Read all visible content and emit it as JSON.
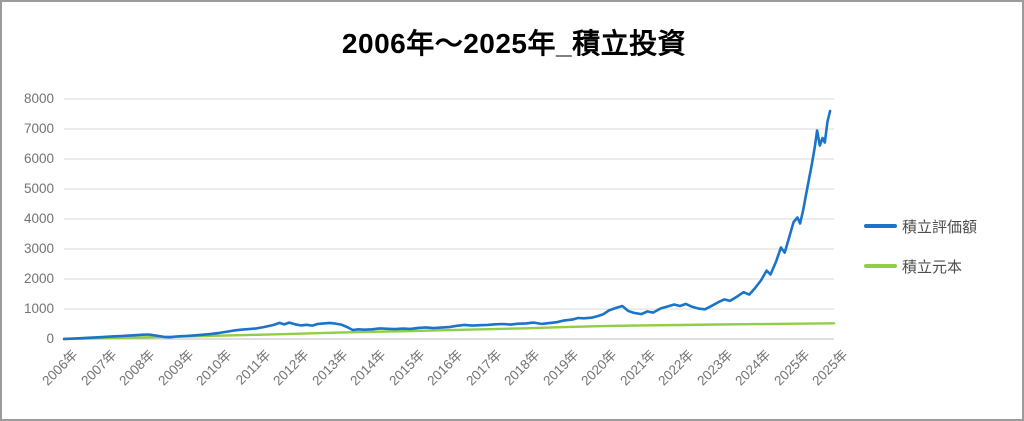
{
  "frame": {
    "border_color": "#9b9b9b",
    "background": "#ffffff"
  },
  "chart_data": {
    "type": "line",
    "title": "2006年～2025年_積立投資",
    "xlabel": "",
    "ylabel": "",
    "ylim": [
      0,
      8000
    ],
    "y_ticks": [
      0,
      1000,
      2000,
      3000,
      4000,
      5000,
      6000,
      7000,
      8000
    ],
    "x_tick_labels": [
      "2006年",
      "2007年",
      "2008年",
      "2009年",
      "2010年",
      "2011年",
      "2012年",
      "2013年",
      "2014年",
      "2015年",
      "2016年",
      "2017年",
      "2018年",
      "2019年",
      "2020年",
      "2021年",
      "2022年",
      "2023年",
      "2024年",
      "2025年",
      "2025年"
    ],
    "grid": "horizontal",
    "grid_color": "#d9d9d9",
    "axis_color": "#bfbfbf",
    "tick_label_color": "#737373",
    "legend_position": "right",
    "x_unit_note": "x = years after 2006 (tick index)",
    "series": [
      {
        "name": "積立評価額",
        "color": "#1b74c9",
        "line_width": 2.6,
        "points": [
          [
            0,
            5
          ],
          [
            0.25,
            15
          ],
          [
            0.5,
            30
          ],
          [
            0.75,
            45
          ],
          [
            1,
            65
          ],
          [
            1.25,
            85
          ],
          [
            1.5,
            100
          ],
          [
            1.75,
            120
          ],
          [
            2,
            140
          ],
          [
            2.2,
            150
          ],
          [
            2.4,
            115
          ],
          [
            2.6,
            70
          ],
          [
            2.75,
            60
          ],
          [
            2.9,
            80
          ],
          [
            3,
            90
          ],
          [
            3.2,
            105
          ],
          [
            3.5,
            130
          ],
          [
            3.8,
            165
          ],
          [
            4,
            195
          ],
          [
            4.2,
            235
          ],
          [
            4.4,
            280
          ],
          [
            4.6,
            310
          ],
          [
            4.8,
            330
          ],
          [
            5,
            355
          ],
          [
            5.2,
            400
          ],
          [
            5.45,
            470
          ],
          [
            5.6,
            535
          ],
          [
            5.72,
            485
          ],
          [
            5.85,
            545
          ],
          [
            6,
            490
          ],
          [
            6.15,
            455
          ],
          [
            6.3,
            475
          ],
          [
            6.45,
            445
          ],
          [
            6.6,
            505
          ],
          [
            6.75,
            520
          ],
          [
            6.9,
            535
          ],
          [
            7.05,
            515
          ],
          [
            7.2,
            480
          ],
          [
            7.35,
            400
          ],
          [
            7.5,
            300
          ],
          [
            7.65,
            325
          ],
          [
            7.8,
            310
          ],
          [
            8,
            325
          ],
          [
            8.2,
            355
          ],
          [
            8.4,
            340
          ],
          [
            8.6,
            330
          ],
          [
            8.8,
            345
          ],
          [
            9,
            335
          ],
          [
            9.2,
            370
          ],
          [
            9.4,
            385
          ],
          [
            9.6,
            365
          ],
          [
            9.8,
            380
          ],
          [
            10,
            395
          ],
          [
            10.2,
            440
          ],
          [
            10.4,
            470
          ],
          [
            10.6,
            445
          ],
          [
            10.8,
            460
          ],
          [
            11,
            470
          ],
          [
            11.2,
            490
          ],
          [
            11.4,
            500
          ],
          [
            11.6,
            480
          ],
          [
            11.8,
            510
          ],
          [
            12,
            520
          ],
          [
            12.2,
            545
          ],
          [
            12.4,
            505
          ],
          [
            12.6,
            530
          ],
          [
            12.8,
            560
          ],
          [
            13,
            620
          ],
          [
            13.2,
            645
          ],
          [
            13.35,
            700
          ],
          [
            13.5,
            690
          ],
          [
            13.7,
            710
          ],
          [
            13.85,
            760
          ],
          [
            14,
            820
          ],
          [
            14.15,
            950
          ],
          [
            14.3,
            1020
          ],
          [
            14.5,
            1100
          ],
          [
            14.65,
            940
          ],
          [
            14.8,
            870
          ],
          [
            15,
            830
          ],
          [
            15.15,
            920
          ],
          [
            15.3,
            880
          ],
          [
            15.5,
            1020
          ],
          [
            15.7,
            1090
          ],
          [
            15.85,
            1150
          ],
          [
            16,
            1100
          ],
          [
            16.15,
            1170
          ],
          [
            16.3,
            1080
          ],
          [
            16.5,
            1010
          ],
          [
            16.65,
            990
          ],
          [
            16.8,
            1090
          ],
          [
            17,
            1230
          ],
          [
            17.15,
            1320
          ],
          [
            17.3,
            1270
          ],
          [
            17.5,
            1430
          ],
          [
            17.65,
            1560
          ],
          [
            17.8,
            1480
          ],
          [
            17.95,
            1700
          ],
          [
            18.1,
            1950
          ],
          [
            18.25,
            2280
          ],
          [
            18.35,
            2150
          ],
          [
            18.5,
            2600
          ],
          [
            18.62,
            3050
          ],
          [
            18.72,
            2880
          ],
          [
            18.85,
            3450
          ],
          [
            18.95,
            3900
          ],
          [
            19.05,
            4050
          ],
          [
            19.12,
            3850
          ],
          [
            19.2,
            4300
          ],
          [
            19.3,
            5000
          ],
          [
            19.42,
            5800
          ],
          [
            19.5,
            6400
          ],
          [
            19.56,
            6950
          ],
          [
            19.63,
            6450
          ],
          [
            19.7,
            6700
          ],
          [
            19.76,
            6550
          ],
          [
            19.83,
            7250
          ],
          [
            19.9,
            7600
          ]
        ]
      },
      {
        "name": "積立元本",
        "color": "#8fce46",
        "line_width": 2.4,
        "points": [
          [
            0,
            0
          ],
          [
            1,
            25
          ],
          [
            2,
            52
          ],
          [
            3,
            80
          ],
          [
            4,
            110
          ],
          [
            5,
            140
          ],
          [
            6,
            175
          ],
          [
            7,
            210
          ],
          [
            8,
            240
          ],
          [
            9,
            268
          ],
          [
            10,
            298
          ],
          [
            11,
            328
          ],
          [
            12,
            358
          ],
          [
            13,
            395
          ],
          [
            14,
            430
          ],
          [
            15,
            455
          ],
          [
            16,
            468
          ],
          [
            17,
            482
          ],
          [
            18,
            497
          ],
          [
            19,
            510
          ],
          [
            20,
            523
          ]
        ]
      }
    ]
  }
}
